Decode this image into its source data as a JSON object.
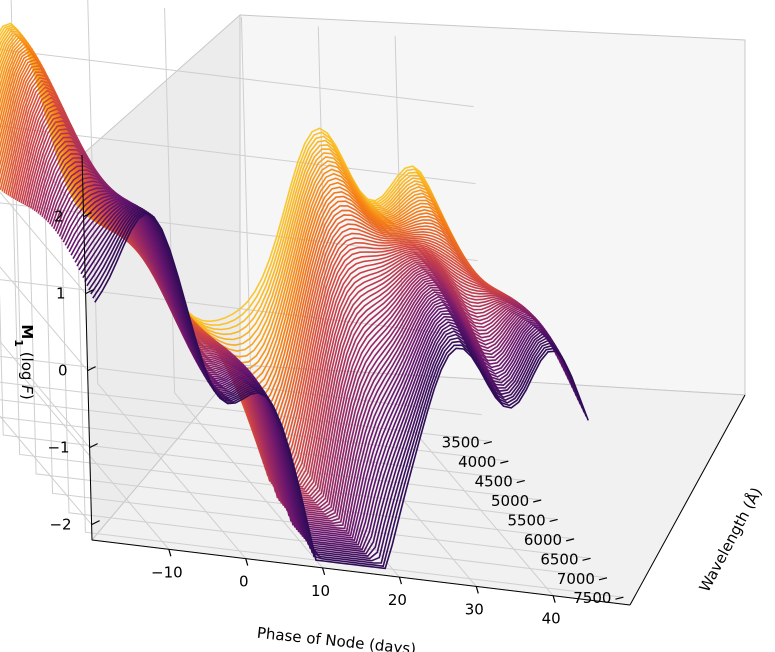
{
  "chart_data": {
    "type": "surface3d",
    "xlabel": "Phase of Node (days)",
    "ylabel": "Wavelength (Å)",
    "zlabel_main": "M",
    "zlabel_sub": "1",
    "zlabel_rest": " (log ",
    "zlabel_F": "F",
    "zlabel_close": ")",
    "x_ticks": [
      "−10",
      "0",
      "10",
      "20",
      "30",
      "40"
    ],
    "x_tick_values": [
      -10,
      0,
      10,
      20,
      30,
      40
    ],
    "y_ticks": [
      "3500",
      "4000",
      "4500",
      "5000",
      "5500",
      "6000",
      "6500",
      "7000",
      "7500"
    ],
    "y_tick_values": [
      3500,
      4000,
      4500,
      5000,
      5500,
      6000,
      6500,
      7000,
      7500
    ],
    "z_ticks": [
      "−2",
      "−1",
      "0",
      "1",
      "2"
    ],
    "z_tick_values": [
      -2,
      -1,
      0,
      1,
      2
    ],
    "xlim": [
      -20,
      50
    ],
    "ylim": [
      3200,
      7700
    ],
    "zlim": [
      -2.2,
      2.8
    ],
    "colormap": "inferno",
    "grid": true
  }
}
